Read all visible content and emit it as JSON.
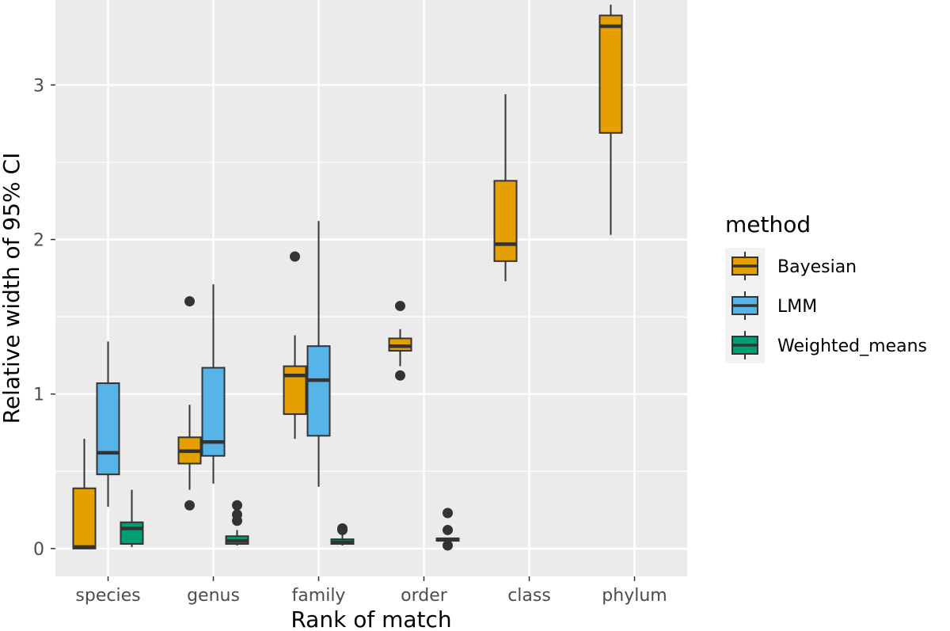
{
  "chart_data": {
    "type": "boxplot",
    "xlabel": "Rank of match",
    "ylabel": "Relative width of 95% CI",
    "categories": [
      "species",
      "genus",
      "family",
      "order",
      "class",
      "phylum"
    ],
    "ylim": [
      -0.18,
      3.55
    ],
    "yticks": [
      0,
      1,
      2,
      3
    ],
    "grid": true,
    "legend": {
      "title": "method",
      "position": "right"
    },
    "colors": {
      "panel": "#ebebeb",
      "grid": "#ffffff",
      "outline": "#333333"
    },
    "series": [
      {
        "name": "Bayesian",
        "color": "#E69F00",
        "boxes": [
          {
            "category": "species",
            "whisker_low": 0.0,
            "q1": 0.0,
            "median": 0.01,
            "q3": 0.39,
            "whisker_high": 0.71,
            "outliers": []
          },
          {
            "category": "genus",
            "whisker_low": 0.38,
            "q1": 0.55,
            "median": 0.63,
            "q3": 0.72,
            "whisker_high": 0.93,
            "outliers": [
              0.28,
              1.6
            ]
          },
          {
            "category": "family",
            "whisker_low": 0.71,
            "q1": 0.87,
            "median": 1.12,
            "q3": 1.18,
            "whisker_high": 1.38,
            "outliers": [
              1.89
            ]
          },
          {
            "category": "order",
            "whisker_low": 1.18,
            "q1": 1.28,
            "median": 1.31,
            "q3": 1.36,
            "whisker_high": 1.42,
            "outliers": [
              1.12,
              1.57
            ]
          },
          {
            "category": "class",
            "whisker_low": 1.73,
            "q1": 1.86,
            "median": 1.97,
            "q3": 2.38,
            "whisker_high": 2.94,
            "outliers": []
          },
          {
            "category": "phylum",
            "whisker_low": 2.03,
            "q1": 2.69,
            "median": 3.38,
            "q3": 3.45,
            "whisker_high": 3.52,
            "outliers": []
          }
        ]
      },
      {
        "name": "LMM",
        "color": "#56B4E9",
        "boxes": [
          {
            "category": "species",
            "whisker_low": 0.27,
            "q1": 0.48,
            "median": 0.62,
            "q3": 1.07,
            "whisker_high": 1.34,
            "outliers": []
          },
          {
            "category": "genus",
            "whisker_low": 0.42,
            "q1": 0.6,
            "median": 0.69,
            "q3": 1.17,
            "whisker_high": 1.71,
            "outliers": []
          },
          {
            "category": "family",
            "whisker_low": 0.4,
            "q1": 0.73,
            "median": 1.09,
            "q3": 1.31,
            "whisker_high": 2.12,
            "outliers": []
          }
        ]
      },
      {
        "name": "Weighted_means",
        "color": "#009E73",
        "boxes": [
          {
            "category": "species",
            "whisker_low": 0.01,
            "q1": 0.03,
            "median": 0.13,
            "q3": 0.17,
            "whisker_high": 0.38,
            "outliers": []
          },
          {
            "category": "genus",
            "whisker_low": 0.02,
            "q1": 0.03,
            "median": 0.05,
            "q3": 0.08,
            "whisker_high": 0.12,
            "outliers": [
              0.18,
              0.22,
              0.28
            ]
          },
          {
            "category": "family",
            "whisker_low": 0.02,
            "q1": 0.03,
            "median": 0.04,
            "q3": 0.06,
            "whisker_high": 0.09,
            "outliers": [
              0.12,
              0.13
            ]
          },
          {
            "category": "order",
            "whisker_low": 0.03,
            "q1": 0.05,
            "median": 0.06,
            "q3": 0.065,
            "whisker_high": 0.07,
            "outliers": [
              0.02,
              0.12,
              0.23
            ]
          }
        ]
      }
    ]
  }
}
